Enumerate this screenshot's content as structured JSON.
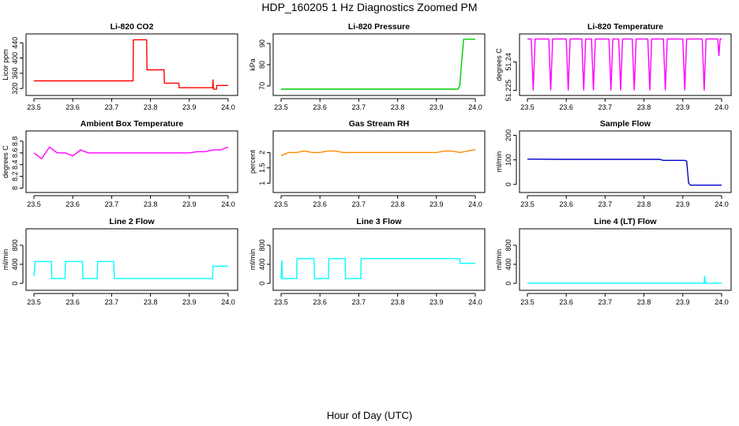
{
  "figure": {
    "title": "HDP_160205  1 Hz Diagnostics Zoomed PM",
    "xlabel": "Hour of Day (UTC)"
  },
  "chart_data": [
    {
      "type": "line",
      "title": "Li-820 CO2",
      "ylabel": "Licor ppm",
      "color": "#ff0000",
      "xlim": [
        23.5,
        24.0
      ],
      "ylim": [
        310,
        455
      ],
      "xticks": [
        "23.5",
        "23.6",
        "23.7",
        "23.8",
        "23.9",
        "24.0"
      ],
      "yticks": [
        320,
        360,
        400,
        440
      ],
      "series": [
        {
          "x": [
            23.5,
            23.755,
            23.756,
            23.79,
            23.791,
            23.835,
            23.836,
            23.873,
            23.874,
            23.96,
            23.961,
            23.962,
            23.97,
            23.971,
            24.0
          ],
          "y": [
            340,
            340,
            448,
            448,
            369,
            369,
            334,
            334,
            322,
            322,
            344,
            318,
            318,
            328,
            328
          ]
        }
      ]
    },
    {
      "type": "line",
      "title": "Li-820 Pressure",
      "ylabel": "kPa",
      "color": "#00cc00",
      "xlim": [
        23.5,
        24.0
      ],
      "ylim": [
        67,
        93
      ],
      "xticks": [
        "23.5",
        "23.6",
        "23.7",
        "23.8",
        "23.9",
        "24.0"
      ],
      "yticks": [
        70,
        80,
        90
      ],
      "series": [
        {
          "x": [
            23.5,
            23.955,
            23.96,
            23.965,
            23.968,
            23.97,
            24.0
          ],
          "y": [
            68.5,
            68.5,
            70,
            82,
            88,
            92,
            92
          ]
        }
      ]
    },
    {
      "type": "line",
      "title": "Li-820 Temperature",
      "ylabel": "degrees C",
      "color": "#ff00ff",
      "xlim": [
        23.5,
        24.0
      ],
      "ylim": [
        51.224,
        51.253
      ],
      "xticks": [
        "23.5",
        "23.6",
        "23.7",
        "23.8",
        "23.9",
        "24.0"
      ],
      "yticks": [
        51.225,
        51.24
      ],
      "series": [
        {
          "x": [
            23.5,
            23.51,
            23.515,
            23.52,
            23.555,
            23.56,
            23.565,
            23.6,
            23.605,
            23.61,
            23.64,
            23.645,
            23.65,
            23.665,
            23.67,
            23.675,
            23.71,
            23.715,
            23.72,
            23.735,
            23.74,
            23.745,
            23.77,
            23.775,
            23.78,
            23.81,
            23.815,
            23.82,
            23.85,
            23.855,
            23.86,
            23.9,
            23.905,
            23.91,
            23.95,
            23.955,
            23.96,
            23.99,
            23.993,
            23.996,
            24.0
          ],
          "y": [
            51.252,
            51.252,
            51.225,
            51.252,
            51.252,
            51.225,
            51.252,
            51.252,
            51.225,
            51.252,
            51.252,
            51.225,
            51.252,
            51.252,
            51.225,
            51.252,
            51.252,
            51.225,
            51.252,
            51.252,
            51.225,
            51.252,
            51.252,
            51.225,
            51.252,
            51.252,
            51.225,
            51.252,
            51.252,
            51.225,
            51.252,
            51.252,
            51.225,
            51.252,
            51.252,
            51.225,
            51.252,
            51.252,
            51.243,
            51.252,
            51.252
          ]
        }
      ]
    },
    {
      "type": "line",
      "title": "Ambient Box Temperature",
      "ylabel": "degrees C",
      "color": "#ff00ff",
      "xlim": [
        23.5,
        24.0
      ],
      "ylim": [
        7.98,
        8.92
      ],
      "xticks": [
        "23.5",
        "23.6",
        "23.7",
        "23.8",
        "23.9",
        "24.0"
      ],
      "yticks": [
        8.0,
        8.2,
        8.4,
        8.6,
        8.8
      ],
      "series": [
        {
          "x": [
            23.5,
            23.52,
            23.54,
            23.56,
            23.58,
            23.6,
            23.62,
            23.64,
            23.66,
            23.68,
            23.7,
            23.72,
            23.74,
            23.76,
            23.78,
            23.8,
            23.82,
            23.84,
            23.86,
            23.88,
            23.9,
            23.92,
            23.94,
            23.96,
            23.98,
            24.0
          ],
          "y": [
            8.6,
            8.5,
            8.7,
            8.6,
            8.6,
            8.55,
            8.65,
            8.6,
            8.6,
            8.6,
            8.6,
            8.6,
            8.6,
            8.6,
            8.6,
            8.6,
            8.6,
            8.6,
            8.6,
            8.6,
            8.6,
            8.62,
            8.62,
            8.65,
            8.65,
            8.7
          ]
        }
      ]
    },
    {
      "type": "line",
      "title": "Gas Stream RH",
      "ylabel": "percent",
      "color": "#ff8c00",
      "xlim": [
        23.5,
        24.0
      ],
      "ylim": [
        0.8,
        2.6
      ],
      "xticks": [
        "23.5",
        "23.6",
        "23.7",
        "23.8",
        "23.9",
        "24.0"
      ],
      "yticks": [
        1.0,
        1.5,
        2.0
      ],
      "series": [
        {
          "x": [
            23.5,
            23.52,
            23.54,
            23.56,
            23.58,
            23.6,
            23.62,
            23.64,
            23.66,
            23.68,
            23.7,
            23.72,
            23.74,
            23.76,
            23.78,
            23.8,
            23.82,
            23.84,
            23.86,
            23.88,
            23.9,
            23.92,
            23.94,
            23.96,
            23.98,
            24.0
          ],
          "y": [
            1.9,
            2.0,
            2.0,
            2.05,
            2.0,
            2.0,
            2.05,
            2.05,
            2.0,
            2.0,
            2.0,
            2.0,
            2.0,
            2.0,
            2.0,
            2.0,
            2.0,
            2.0,
            2.0,
            2.0,
            2.0,
            2.05,
            2.05,
            2.0,
            2.05,
            2.1
          ]
        }
      ]
    },
    {
      "type": "line",
      "title": "Sample Flow",
      "ylabel": "ml/min",
      "color": "#0000cc",
      "xlim": [
        23.5,
        24.0
      ],
      "ylim": [
        -20,
        205
      ],
      "xticks": [
        "23.5",
        "23.6",
        "23.7",
        "23.8",
        "23.9",
        "24.0"
      ],
      "yticks": [
        0,
        100,
        200
      ],
      "series": [
        {
          "x": [
            23.5,
            23.6,
            23.7,
            23.8,
            23.84,
            23.85,
            23.905,
            23.91,
            23.915,
            23.92,
            23.95,
            24.0
          ],
          "y": [
            103,
            102,
            102,
            102,
            102,
            98,
            98,
            95,
            5,
            -3,
            -3,
            -3
          ]
        }
      ]
    },
    {
      "type": "line",
      "title": "Line 2 Flow",
      "ylabel": "ml/min",
      "color": "#00ffff",
      "xlim": [
        23.5,
        24.0
      ],
      "ylim": [
        -80,
        1080
      ],
      "xticks": [
        "23.5",
        "23.6",
        "23.7",
        "23.8",
        "23.9",
        "24.0"
      ],
      "yticks": [
        0,
        400,
        800
      ],
      "series": [
        {
          "x": [
            23.5,
            23.503,
            23.545,
            23.546,
            23.58,
            23.581,
            23.625,
            23.626,
            23.663,
            23.664,
            23.705,
            23.707,
            23.71,
            23.96,
            23.961,
            24.0
          ],
          "y": [
            150,
            460,
            460,
            100,
            100,
            460,
            460,
            100,
            100,
            460,
            460,
            100,
            100,
            100,
            360,
            360
          ]
        }
      ]
    },
    {
      "type": "line",
      "title": "Line 3 Flow",
      "ylabel": "ml/min",
      "color": "#00ffff",
      "xlim": [
        23.5,
        24.0
      ],
      "ylim": [
        -80,
        1080
      ],
      "xticks": [
        "23.5",
        "23.6",
        "23.7",
        "23.8",
        "23.9",
        "24.0"
      ],
      "yticks": [
        0,
        400,
        800
      ],
      "series": [
        {
          "x": [
            23.5,
            23.502,
            23.503,
            23.54,
            23.541,
            23.585,
            23.586,
            23.622,
            23.623,
            23.665,
            23.666,
            23.705,
            23.706,
            23.8,
            23.96,
            23.961,
            24.0
          ],
          "y": [
            100,
            480,
            100,
            100,
            520,
            520,
            100,
            100,
            520,
            520,
            100,
            100,
            520,
            520,
            520,
            420,
            420
          ]
        }
      ]
    },
    {
      "type": "line",
      "title": "Line 4 (LT) Flow",
      "ylabel": "ml/min",
      "color": "#00ffff",
      "xlim": [
        23.5,
        24.0
      ],
      "ylim": [
        -80,
        1080
      ],
      "xticks": [
        "23.5",
        "23.6",
        "23.7",
        "23.8",
        "23.9",
        "24.0"
      ],
      "yticks": [
        0,
        400,
        800
      ],
      "series": [
        {
          "x": [
            23.5,
            23.6,
            23.7,
            23.8,
            23.9,
            23.955,
            23.956,
            23.958,
            23.96,
            23.97,
            24.0
          ],
          "y": [
            5,
            5,
            5,
            5,
            5,
            5,
            160,
            5,
            5,
            5,
            5
          ]
        }
      ]
    }
  ]
}
